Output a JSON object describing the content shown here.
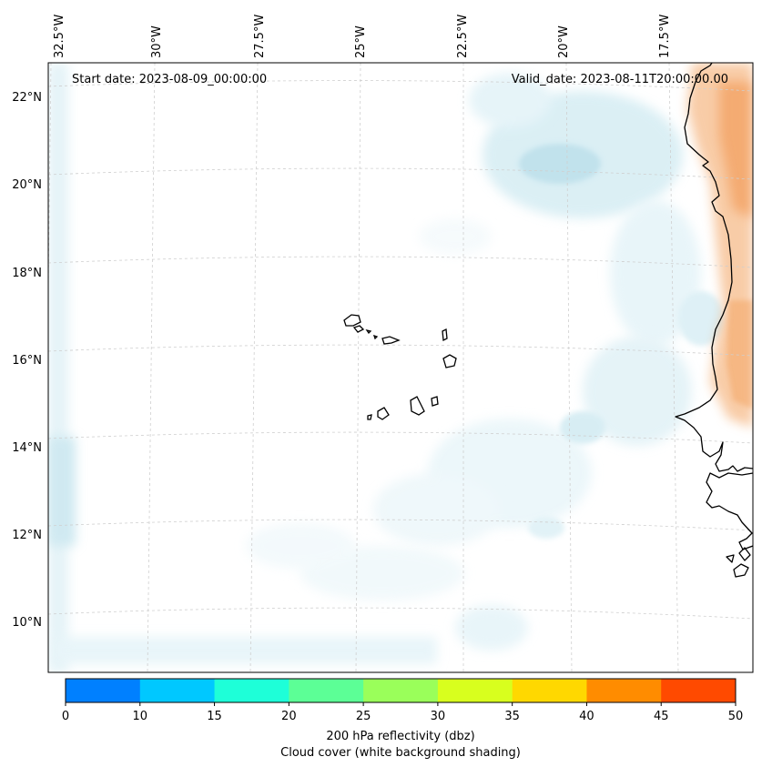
{
  "map": {
    "start_date": "Start date: 2023-08-09_00:00:00",
    "valid_date": "Valid_date: 2023-08-11T20:00:00.00",
    "lon_labels": [
      "32.5°W",
      "30°W",
      "27.5°W",
      "25°W",
      "22.5°W",
      "20°W",
      "17.5°W"
    ],
    "lat_labels": [
      "22°N",
      "20°N",
      "18°N",
      "16°N",
      "14°N",
      "12°N",
      "10°N"
    ],
    "colors": {
      "cloud_shading": "#a9d8e6",
      "orange_field": "#f3a25e",
      "coastline": "#000000",
      "gridline": "#cfcfcf"
    }
  },
  "colorbar": {
    "ticks": [
      "0",
      "10",
      "15",
      "20",
      "25",
      "30",
      "35",
      "40",
      "45",
      "50"
    ],
    "colors": [
      "#0080ff",
      "#00c8ff",
      "#1effd8",
      "#5cff96",
      "#9aff5a",
      "#d8ff1e",
      "#ffd800",
      "#ff8c00",
      "#ff4a00"
    ],
    "label_line1": "200 hPa reflectivity (dbz)",
    "label_line2": "Cloud cover (white background shading)"
  }
}
